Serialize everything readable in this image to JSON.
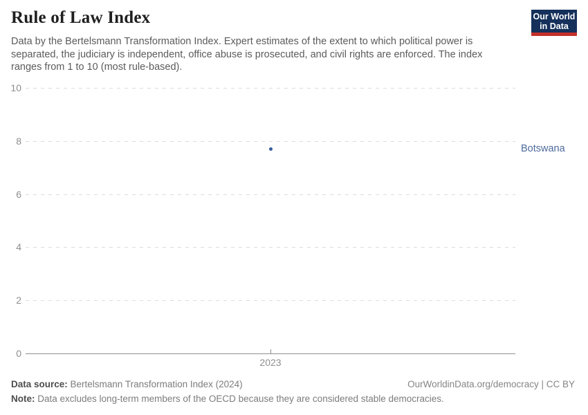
{
  "header": {
    "title": "Rule of Law Index",
    "subtitle": "Data by the Bertelsmann Transformation Index. Expert estimates of the extent to which political power is separated, the judiciary is independent, office abuse is prosecuted, and civil rights are enforced. The index ranges from 1 to 10 (most rule-based).",
    "logo": {
      "line1": "Our World",
      "line2": "in Data",
      "background_color": "#15305a",
      "bar_color": "#c5302c"
    }
  },
  "chart_data": {
    "type": "scatter",
    "title": "Rule of Law Index",
    "series": [
      {
        "name": "Botswana",
        "color": "#3a5c9f",
        "label_color": "#4c6a9c",
        "points": [
          {
            "x": 2023,
            "y": 7.7
          }
        ]
      }
    ],
    "x_ticks": [
      "2023"
    ],
    "y_ticks": [
      0,
      2,
      4,
      6,
      8,
      10
    ],
    "ylim": [
      0,
      10
    ],
    "grid": "horizontal-dashed",
    "legend_position": "right-entity-label"
  },
  "footer": {
    "source_label": "Data source:",
    "source_text": " Bertelsmann Transformation Index (2024)",
    "attribution": "OurWorldinData.org/democracy | CC BY",
    "note_label": "Note:",
    "note_text": " Data excludes long-term members of the OECD because they are considered stable democracies."
  }
}
